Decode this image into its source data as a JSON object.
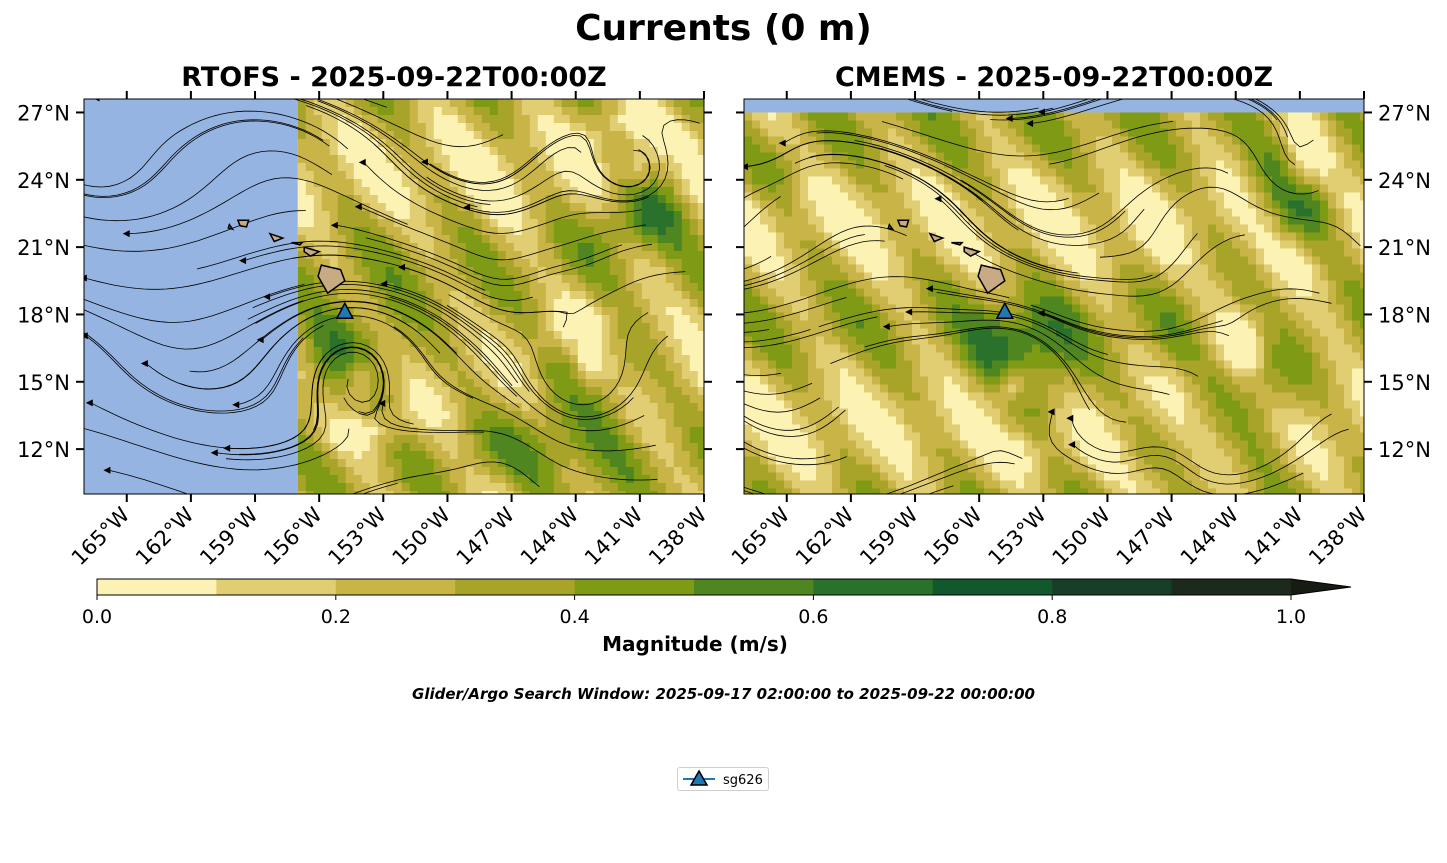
{
  "figure": {
    "title": "Currents (0 m)",
    "search_window": "Glider/Argo Search Window: 2025-09-17 02:00:00 to 2025-09-22 00:00:00"
  },
  "panels": [
    {
      "id": "rtofs",
      "title": "RTOFS - 2025-09-22T00:00Z",
      "model_domain_west_lon": -157.0,
      "lat_labels_side": "left",
      "glider": {
        "name": "sg626",
        "lon": -154.8,
        "lat": 18.1
      },
      "island_fill": "#c8ab84"
    },
    {
      "id": "cmems",
      "title": "CMEMS - 2025-09-22T00:00Z",
      "model_domain_north_lat": 27.0,
      "lat_labels_side": "right",
      "glider": {
        "name": "sg626",
        "lon": -154.8,
        "lat": 18.1
      },
      "island_fill": "#c8ab84"
    }
  ],
  "map_extent": {
    "lon": [
      -167.0,
      -138.0
    ],
    "lat": [
      10.0,
      27.6
    ]
  },
  "lon_ticks": [
    "165°W",
    "162°W",
    "159°W",
    "156°W",
    "153°W",
    "150°W",
    "147°W",
    "144°W",
    "141°W",
    "138°W"
  ],
  "lon_tick_values": [
    -165,
    -162,
    -159,
    -156,
    -153,
    -150,
    -147,
    -144,
    -141,
    -138
  ],
  "lat_ticks": [
    "12°N",
    "15°N",
    "18°N",
    "21°N",
    "24°N",
    "27°N"
  ],
  "lat_tick_values": [
    12,
    15,
    18,
    21,
    24,
    27
  ],
  "colorbar": {
    "label": "Magnitude (m/s)",
    "tick_labels": [
      "0.0",
      "0.2",
      "0.4",
      "0.6",
      "0.8",
      "1.0"
    ],
    "min": 0.0,
    "max": 1.0,
    "extend": "max",
    "colors": [
      "#fbf2b4",
      "#e1cd72",
      "#c8b447",
      "#a8a429",
      "#7f9a15",
      "#4f8620",
      "#2a722b",
      "#11582c",
      "#173f27",
      "#1c2a1e"
    ],
    "over_color": "#161c13"
  },
  "colors": {
    "land_nodata": "#95b4e1",
    "glider_marker": "#1f77b4",
    "glider_track": "#1f77b4"
  },
  "legend": {
    "entries": [
      {
        "label": "sg626",
        "marker": "triangle-up",
        "color": "#1f77b4"
      }
    ]
  }
}
